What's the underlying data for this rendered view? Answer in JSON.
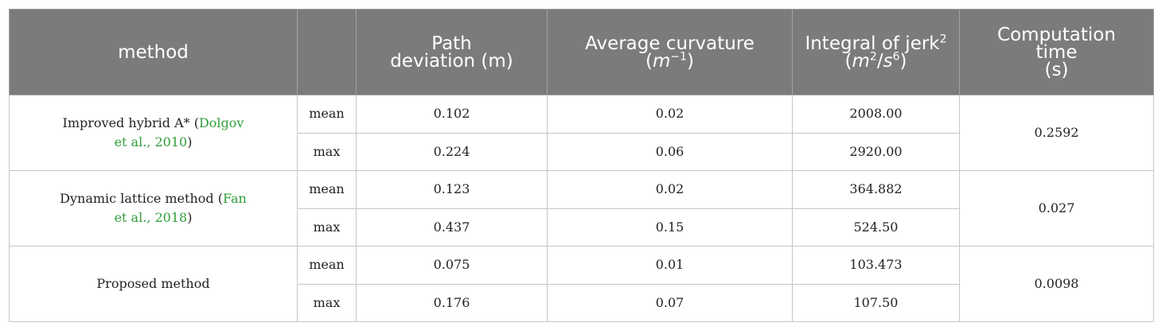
{
  "header": {
    "method": "method",
    "stat": "",
    "path_deviation": [
      "Path",
      "deviation (m)"
    ],
    "curvature": {
      "line1": "Average curvature",
      "open": "(",
      "unit": "m",
      "exp": "−1",
      "close": ")"
    },
    "jerk": {
      "line1": "Integral of jerk",
      "line1_sup": "2",
      "open": "(",
      "u1": "m",
      "u1_exp": "2",
      "slash": "/",
      "u2": "s",
      "u2_exp": "6",
      "close": ")"
    },
    "computation_time": [
      "Computation",
      "time",
      "(s)"
    ]
  },
  "groups": [
    {
      "method_text": "Improved hybrid A* (",
      "citation": "Dolgov et al., 2010",
      "method_close": ")",
      "computation_time": "0.2592",
      "rows": [
        {
          "stat": "mean",
          "path_deviation": "0.102",
          "curvature": "0.02",
          "jerk": "2008.00"
        },
        {
          "stat": "max",
          "path_deviation": "0.224",
          "curvature": "0.06",
          "jerk": "2920.00"
        }
      ]
    },
    {
      "method_text": "Dynamic lattice method (",
      "citation": "Fan et al., 2018",
      "method_close": ")",
      "computation_time": "0.027",
      "rows": [
        {
          "stat": "mean",
          "path_deviation": "0.123",
          "curvature": "0.02",
          "jerk": "364.882"
        },
        {
          "stat": "max",
          "path_deviation": "0.437",
          "curvature": "0.15",
          "jerk": "524.50"
        }
      ]
    },
    {
      "method_text": "Proposed method",
      "citation": "",
      "method_close": "",
      "computation_time": "0.0098",
      "rows": [
        {
          "stat": "mean",
          "path_deviation": "0.075",
          "curvature": "0.01",
          "jerk": "103.473"
        },
        {
          "stat": "max",
          "path_deviation": "0.176",
          "curvature": "0.07",
          "jerk": "107.50"
        }
      ]
    }
  ],
  "colors": {
    "header_bg": "#7a7c7b",
    "citation": "#2f9e3a",
    "border": "#c6c6c6"
  }
}
